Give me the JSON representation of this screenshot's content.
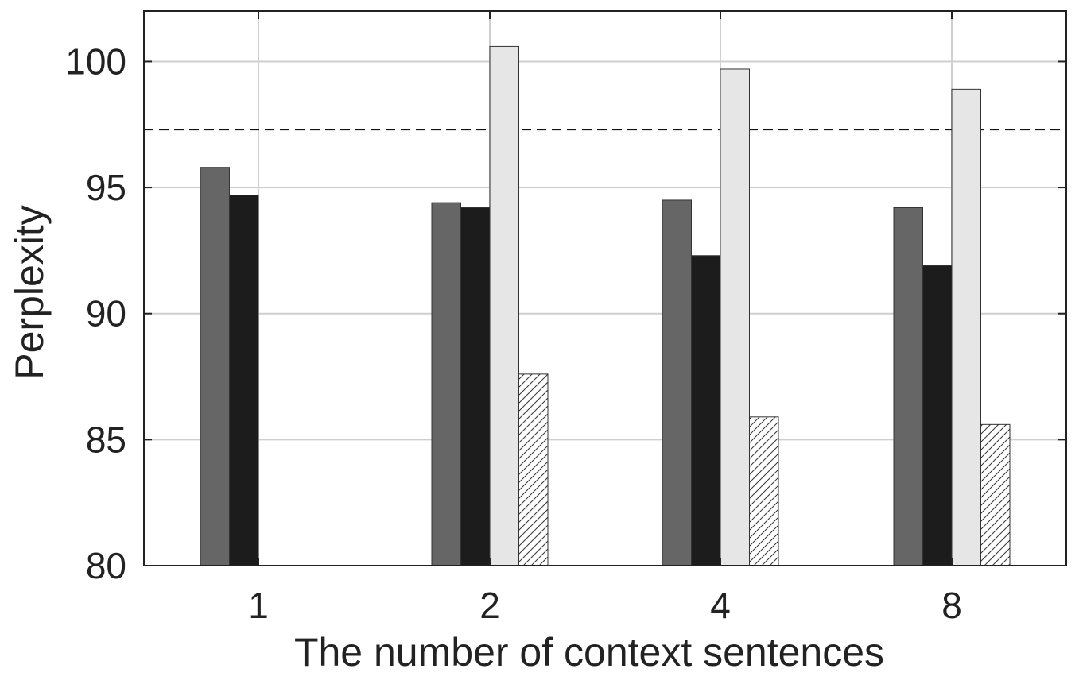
{
  "chart_data": {
    "type": "bar",
    "xlabel": "The number of context sentences",
    "ylabel": "Perplexity",
    "ylim": [
      80,
      102
    ],
    "yticks": [
      80,
      85,
      90,
      95,
      100
    ],
    "categories": [
      "1",
      "2",
      "4",
      "8"
    ],
    "grid": true,
    "baseline": {
      "value": 97.3,
      "style": "dashed"
    },
    "series": [
      {
        "fill": "#666666",
        "pattern": "solid",
        "values": [
          95.8,
          94.4,
          94.5,
          94.2
        ]
      },
      {
        "fill": "#1c1c1c",
        "pattern": "solid",
        "values": [
          94.7,
          94.2,
          92.3,
          91.9
        ]
      },
      {
        "fill": "#e6e6e6",
        "pattern": "solid",
        "values": [
          null,
          100.6,
          99.7,
          98.9
        ]
      },
      {
        "fill": "#ffffff",
        "pattern": "hatch",
        "values": [
          null,
          87.6,
          85.9,
          85.6
        ]
      }
    ]
  }
}
